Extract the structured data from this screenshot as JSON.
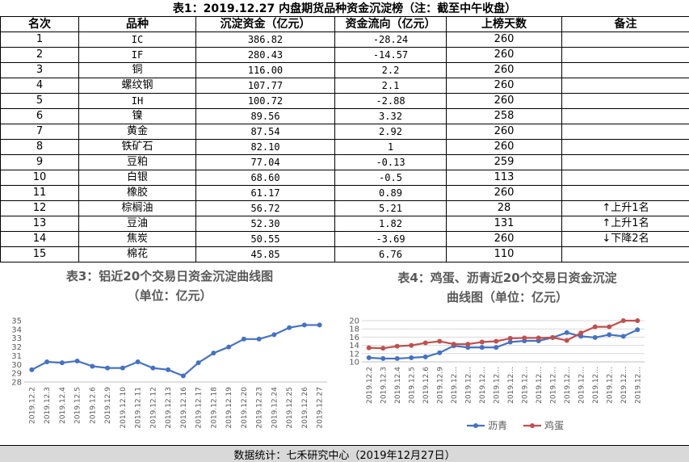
{
  "table": {
    "title": "表1：2019.12.27 内盘期货品种资金沉淀榜（注：截至中午收盘）",
    "headers": [
      "名次",
      "品种",
      "沉淀资金（亿元）",
      "资金流向（亿元）",
      "上榜天数",
      "备注"
    ],
    "rows": [
      {
        "rank": "1",
        "name": "IC",
        "fund": "386.82",
        "flow": "-28.24",
        "days": "260",
        "note": ""
      },
      {
        "rank": "2",
        "name": "IF",
        "fund": "280.43",
        "flow": "-14.57",
        "days": "260",
        "note": ""
      },
      {
        "rank": "3",
        "name": "铜",
        "fund": "116.00",
        "flow": "2.2",
        "days": "260",
        "note": ""
      },
      {
        "rank": "4",
        "name": "螺纹钢",
        "fund": "107.77",
        "flow": "2.1",
        "days": "260",
        "note": ""
      },
      {
        "rank": "5",
        "name": "IH",
        "fund": "100.72",
        "flow": "-2.88",
        "days": "260",
        "note": ""
      },
      {
        "rank": "6",
        "name": "镍",
        "fund": "89.56",
        "flow": "3.32",
        "days": "258",
        "note": ""
      },
      {
        "rank": "7",
        "name": "黄金",
        "fund": "87.54",
        "flow": "2.92",
        "days": "260",
        "note": ""
      },
      {
        "rank": "8",
        "name": "铁矿石",
        "fund": "82.10",
        "flow": "1",
        "days": "260",
        "note": ""
      },
      {
        "rank": "9",
        "name": "豆粕",
        "fund": "77.04",
        "flow": "-0.13",
        "days": "259",
        "note": ""
      },
      {
        "rank": "10",
        "name": "白银",
        "fund": "68.60",
        "flow": "-0.5",
        "days": "113",
        "note": ""
      },
      {
        "rank": "11",
        "name": "橡胶",
        "fund": "61.17",
        "flow": "0.89",
        "days": "260",
        "note": ""
      },
      {
        "rank": "12",
        "name": "棕榈油",
        "fund": "56.72",
        "flow": "5.21",
        "days": "28",
        "note": "↑上升1名"
      },
      {
        "rank": "13",
        "name": "豆油",
        "fund": "52.30",
        "flow": "1.82",
        "days": "131",
        "note": "↑上升1名"
      },
      {
        "rank": "14",
        "name": "焦炭",
        "fund": "50.55",
        "flow": "-3.69",
        "days": "260",
        "note": "↓下降2名"
      },
      {
        "rank": "15",
        "name": "棉花",
        "fund": "45.85",
        "flow": "6.76",
        "days": "110",
        "note": ""
      }
    ]
  },
  "chart_data": [
    {
      "type": "line",
      "title": "表3：铝近20个交易日资金沉淀曲线图",
      "subtitle": "（单位：亿元）",
      "categories": [
        "2019.12.2",
        "2019.12.3",
        "2019.12.4",
        "2019.12.5",
        "2019.12.6",
        "2019.12.9",
        "2019.12.10",
        "2019.12.11",
        "2019.12.12",
        "2019.12.13",
        "2019.12.16",
        "2019.12.17",
        "2019.12.18",
        "2019.12.19",
        "2019.12.20",
        "2019.12.23",
        "2019.12.24",
        "2019.12.25",
        "2019.12.26",
        "2019.12.27"
      ],
      "series": [
        {
          "name": "",
          "color": "#4472C4",
          "values": [
            29.4,
            30.3,
            30.2,
            30.4,
            29.8,
            29.6,
            29.6,
            30.3,
            29.6,
            29.4,
            28.7,
            30.2,
            31.3,
            32.0,
            32.9,
            32.9,
            33.4,
            34.2,
            34.5,
            34.5
          ]
        }
      ],
      "ylim": [
        28,
        35
      ],
      "yticks": [
        "28",
        "29",
        "30",
        "31",
        "32",
        "33",
        "34",
        "35"
      ],
      "grid": false,
      "legend": "none"
    },
    {
      "type": "line",
      "title": "表4：鸡蛋、沥青近20个交易日资金沉淀",
      "subtitle": "曲线图（单位：亿元）",
      "categories": [
        "2019.12.2",
        "2019.12.3",
        "2019.12.4",
        "2019.12.5",
        "2019.12.6",
        "2019.12.9",
        "2019.12...",
        "2019.12...",
        "2019.12...",
        "2019.12...",
        "2019.12...",
        "2019.12...",
        "2019.12...",
        "2019.12...",
        "2019.12...",
        "2019.12...",
        "2019.12...",
        "2019.12...",
        "2019.12...",
        "2019.12..."
      ],
      "series": [
        {
          "name": "沥青",
          "color": "#4472C4",
          "values": [
            11.0,
            10.8,
            10.8,
            11.0,
            11.2,
            12.2,
            13.9,
            13.5,
            13.5,
            13.5,
            14.8,
            15.1,
            15.1,
            15.9,
            17.1,
            16.2,
            15.9,
            16.6,
            16.2,
            17.8
          ]
        },
        {
          "name": "鸡蛋",
          "color": "#C0504D",
          "values": [
            13.4,
            13.3,
            13.8,
            14.0,
            14.6,
            15.0,
            14.3,
            14.3,
            14.8,
            15.0,
            15.7,
            15.8,
            15.8,
            15.9,
            15.2,
            17.0,
            18.5,
            18.5,
            20.0,
            20.0
          ]
        }
      ],
      "ylim": [
        10,
        20
      ],
      "yticks": [
        "10",
        "12",
        "14",
        "16",
        "18",
        "20"
      ],
      "grid": true,
      "legend": "bottom"
    }
  ],
  "footer": "数据统计：七禾研究中心（2019年12月27日）"
}
